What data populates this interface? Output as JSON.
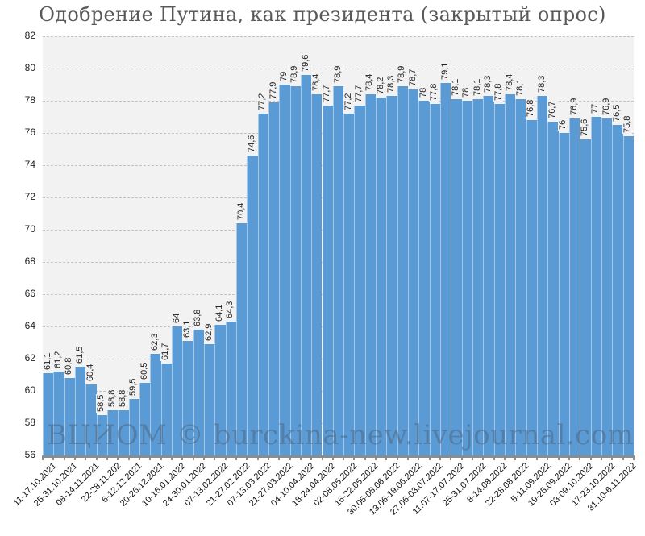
{
  "title": "Одобрение Путина, как президента (закрытый опрос)",
  "watermark": "ВЦИОМ © burckina-new.livejournal.com",
  "colors": {
    "bar": "#5b9bd5",
    "plot_bg": "#f2f2f2",
    "grid": "#c2c2c2",
    "title": "#595959"
  },
  "chart_data": {
    "type": "bar",
    "title": "Одобрение Путина, как президента (закрытый опрос)",
    "xlabel": "",
    "ylabel": "",
    "ylim": [
      56,
      82
    ],
    "yticks": [
      56,
      58,
      60,
      62,
      64,
      66,
      68,
      70,
      72,
      74,
      76,
      78,
      80,
      82
    ],
    "grid": true,
    "legend": "none",
    "values": [
      61.1,
      61.2,
      60.8,
      61.5,
      60.4,
      58.5,
      58.8,
      58.8,
      59.5,
      60.5,
      62.3,
      61.7,
      64,
      63.1,
      63.8,
      62.9,
      64.1,
      64.3,
      70.4,
      74.6,
      77.2,
      77.9,
      79,
      78.9,
      79.6,
      78.4,
      77.7,
      78.9,
      77.2,
      77.7,
      78.4,
      78.2,
      78.3,
      78.9,
      78.7,
      78,
      77.8,
      79.1,
      78.1,
      78,
      78.1,
      78.3,
      77.8,
      78.4,
      78.1,
      76.8,
      78.3,
      76.7,
      76,
      76.9,
      75.6,
      77,
      76.9,
      76.5,
      75.8
    ],
    "value_labels": [
      "61,1",
      "61,2",
      "60,8",
      "61,5",
      "60,4",
      "58,5",
      "58,8",
      "58,8",
      "59,5",
      "60,5",
      "62,3",
      "61,7",
      "64",
      "63,1",
      "63,8",
      "62,9",
      "64,1",
      "64,3",
      "70,4",
      "74,6",
      "77,2",
      "77,9",
      "79",
      "78,9",
      "79,6",
      "78,4",
      "77,7",
      "78,9",
      "77,2",
      "77,7",
      "78,4",
      "78,2",
      "78,3",
      "78,9",
      "78,7",
      "78",
      "77,8",
      "79,1",
      "78,1",
      "78",
      "78,1",
      "78,3",
      "77,8",
      "78,4",
      "78,1",
      "76,8",
      "78,3",
      "76,7",
      "76",
      "76,9",
      "75,6",
      "77",
      "76,9",
      "76,5",
      "75,8"
    ],
    "x_tick_labels": [
      "11-17.10.2021",
      "25-31.10.2021",
      "08-14.11.2021",
      "22-28.11.202",
      "6-12.12.2021",
      "20-26.12.2021",
      "10-16.01.2022",
      "24-30.01.2022",
      "07-13.02.2022",
      "21-27.02.2022",
      "07-13.03.2022",
      "21-27.03.2022",
      "04-10.04.2022",
      "18-24.04.2022",
      "02-08.05.2022",
      "16-22.05.2022",
      "30.05-05.06.2022",
      "13.06-19.06.2022",
      "27.06-03.07.2022",
      "11.07-17.07.2022",
      "25-31.07.2022",
      "8-14.08.2022",
      "22-28.08.2022",
      "5-11.09.2022",
      "19-25.09.2022",
      "03-09.10.2022",
      "17-23.10.2022",
      "31.10-6.11.2022"
    ],
    "x_tick_every": 2
  }
}
